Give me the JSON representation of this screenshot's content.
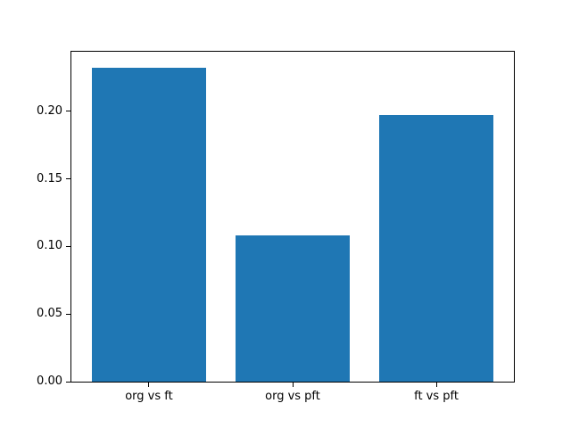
{
  "figure": {
    "background_color": "#ffffff"
  },
  "chart_data": {
    "type": "bar",
    "title": "",
    "xlabel": "",
    "ylabel": "",
    "categories": [
      "org vs ft",
      "org vs pft",
      "ft vs pft"
    ],
    "values": [
      0.232,
      0.108,
      0.197
    ],
    "yticks": [
      0,
      0.05,
      0.1,
      0.15,
      0.2
    ],
    "ytick_labels": [
      "0.00",
      "0.05",
      "0.10",
      "0.15",
      "0.20"
    ],
    "ylim": [
      0,
      0.244
    ],
    "xlim": [
      -0.54,
      2.54
    ],
    "bar_width": 0.8,
    "bar_color": "#1f77b4",
    "axis_color": "#000000",
    "grid": false,
    "legend": null
  }
}
